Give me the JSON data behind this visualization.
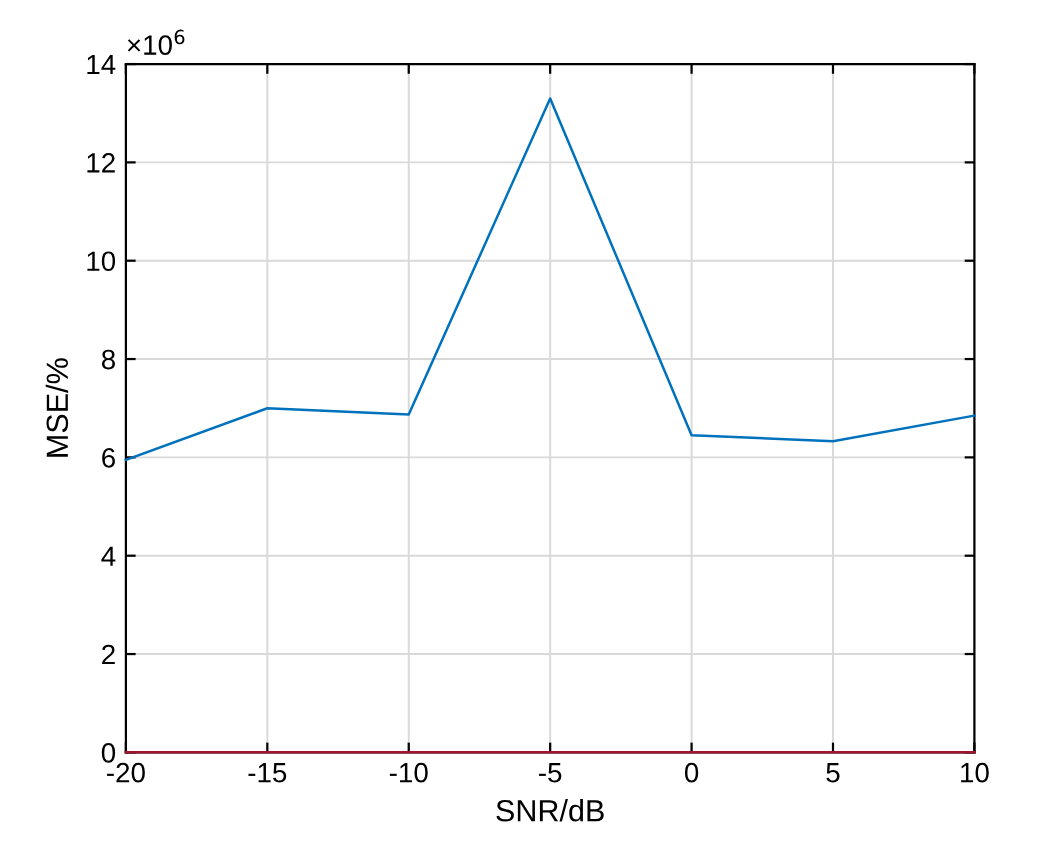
{
  "chart_data": {
    "type": "line",
    "xlabel": "SNR/dB",
    "ylabel": "MSE/%",
    "x": [
      -20,
      -15,
      -10,
      -5,
      0,
      5,
      10
    ],
    "series": [
      {
        "color": "#0072bd",
        "values": [
          5.95,
          7.0,
          6.87,
          13.3,
          6.45,
          6.33,
          6.85
        ]
      },
      {
        "color": "#a2142f",
        "values": [
          0,
          0,
          0,
          0,
          0,
          0,
          0
        ]
      }
    ],
    "xlim": [
      -20,
      10
    ],
    "xticks": [
      -20,
      -15,
      -10,
      -5,
      0,
      5,
      10
    ],
    "ylim": [
      0,
      14
    ],
    "yticks": [
      0,
      2,
      4,
      6,
      8,
      10,
      12,
      14
    ],
    "grid": true,
    "annotations": [
      "×10$^{6}$"
    ]
  }
}
